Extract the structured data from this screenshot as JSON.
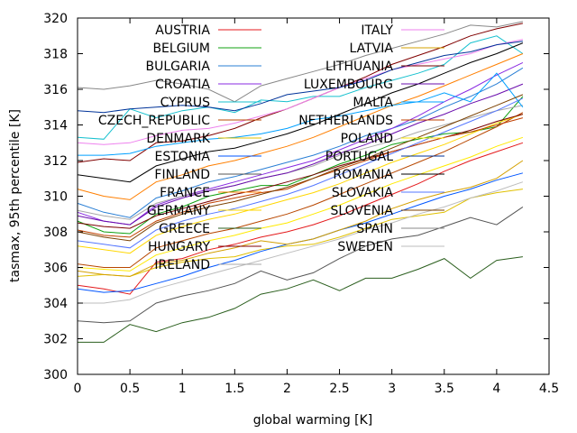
{
  "chart_data": {
    "type": "line",
    "title": "",
    "xlabel": "global warming [K]",
    "ylabel": "tasmax, 95th percentile [K]",
    "xlim": [
      0,
      4.5
    ],
    "ylim": [
      300,
      320
    ],
    "xticks": [
      "0",
      "0.5",
      "1",
      "1.5",
      "2",
      "2.5",
      "3",
      "3.5",
      "4",
      "4.5"
    ],
    "yticks": [
      "300",
      "302",
      "304",
      "306",
      "308",
      "310",
      "312",
      "314",
      "316",
      "318",
      "320"
    ],
    "grid": false,
    "legend": "top-inside, two columns",
    "x": [
      0,
      0.25,
      0.5,
      0.75,
      1,
      1.25,
      1.5,
      1.75,
      2,
      2.25,
      2.5,
      2.75,
      3,
      3.25,
      3.5,
      3.75,
      4,
      4.25
    ],
    "series": [
      {
        "name": "AUSTRIA",
        "color": "#e41a1c",
        "values": [
          305.0,
          304.8,
          304.5,
          306.3,
          306.5,
          307.0,
          307.3,
          307.7,
          308.0,
          308.4,
          308.9,
          309.5,
          310.1,
          310.7,
          311.4,
          312.0,
          312.5,
          313.0
        ]
      },
      {
        "name": "BELGIUM",
        "color": "#11a011",
        "values": [
          308.6,
          308.0,
          307.9,
          309.0,
          309.4,
          310.0,
          310.3,
          310.6,
          310.6,
          311.2,
          311.8,
          312.3,
          312.9,
          313.2,
          313.5,
          313.6,
          313.9,
          315.6
        ]
      },
      {
        "name": "BULGARIA",
        "color": "#2a7fd5",
        "values": [
          309.6,
          309.1,
          308.8,
          309.9,
          310.3,
          310.8,
          311.1,
          311.5,
          311.9,
          312.3,
          312.8,
          313.4,
          313.8,
          314.3,
          315.0,
          315.6,
          316.3,
          317.2
        ]
      },
      {
        "name": "CROATIA",
        "color": "#8a2be2",
        "values": [
          309.1,
          308.6,
          308.4,
          309.5,
          310.0,
          310.4,
          310.8,
          311.2,
          311.6,
          312.0,
          312.6,
          313.2,
          313.8,
          314.5,
          315.3,
          316.0,
          316.8,
          317.5
        ]
      },
      {
        "name": "CYPRUS",
        "color": "#17c1cf",
        "values": [
          313.3,
          313.2,
          314.9,
          314.4,
          314.8,
          315.0,
          314.7,
          315.4,
          315.3,
          315.6,
          315.6,
          316.1,
          316.5,
          316.9,
          317.4,
          318.6,
          319.0,
          318.0
        ]
      },
      {
        "name": "CZECH_REPUBLIC",
        "color": "#b84700",
        "values": [
          306.2,
          306.0,
          306.0,
          307.1,
          307.5,
          307.9,
          308.2,
          308.6,
          309.0,
          309.5,
          310.1,
          310.7,
          311.3,
          311.9,
          312.5,
          313.2,
          313.9,
          314.7
        ]
      },
      {
        "name": "DENMARK",
        "color": "#e0c000",
        "values": [
          305.5,
          305.6,
          305.5,
          306.0,
          306.3,
          306.5,
          306.6,
          307.0,
          307.2,
          307.3,
          307.7,
          308.2,
          308.7,
          308.9,
          309.1,
          309.9,
          310.2,
          310.4
        ]
      },
      {
        "name": "ESTONIA",
        "color": "#0055ff",
        "values": [
          304.8,
          304.6,
          304.7,
          305.1,
          305.5,
          306.0,
          306.4,
          306.9,
          307.3,
          307.6,
          308.1,
          308.5,
          309.0,
          309.5,
          310.0,
          310.4,
          310.9,
          311.3
        ]
      },
      {
        "name": "FINLAND",
        "color": "#555555",
        "values": [
          303.0,
          302.9,
          303.0,
          304.0,
          304.4,
          304.7,
          305.1,
          305.8,
          305.3,
          305.7,
          306.5,
          307.2,
          307.6,
          307.8,
          308.3,
          308.8,
          308.4,
          309.4
        ]
      },
      {
        "name": "FRANCE",
        "color": "#ff7f00",
        "values": [
          310.4,
          310.0,
          309.8,
          310.8,
          311.2,
          311.7,
          312.0,
          312.4,
          312.8,
          313.3,
          313.9,
          314.5,
          315.1,
          315.6,
          316.2,
          316.8,
          317.4,
          318.0
        ]
      },
      {
        "name": "GERMANY",
        "color": "#ffd700",
        "values": [
          307.2,
          307.0,
          306.8,
          307.8,
          308.3,
          308.7,
          309.0,
          309.4,
          309.8,
          310.2,
          310.7,
          311.3,
          311.9,
          312.4,
          312.9,
          313.5,
          314.1,
          314.6
        ]
      },
      {
        "name": "GREECE",
        "color": "#2b5f1e",
        "values": [
          301.8,
          301.8,
          302.8,
          302.4,
          302.9,
          303.2,
          303.7,
          304.5,
          304.8,
          305.3,
          304.7,
          305.4,
          305.4,
          305.9,
          306.5,
          305.4,
          306.4,
          306.6
        ]
      },
      {
        "name": "HUNGARY",
        "color": "#800000",
        "values": [
          311.9,
          312.1,
          312.0,
          313.0,
          313.1,
          313.4,
          313.8,
          314.4,
          314.9,
          315.5,
          316.1,
          316.7,
          317.4,
          317.9,
          318.4,
          319.0,
          319.4,
          319.7
        ]
      },
      {
        "name": "IRELAND",
        "color": "#a8a8a8",
        "values": [
          309.2,
          308.9,
          308.7,
          309.6,
          310.0,
          310.3,
          310.6,
          311.0,
          311.3,
          311.7,
          312.3,
          312.7,
          313.1,
          313.6,
          314.0,
          314.4,
          314.8,
          315.1
        ]
      },
      {
        "name": "ITALY",
        "color": "#ee82ee",
        "values": [
          313.0,
          312.9,
          313.0,
          313.4,
          313.7,
          313.8,
          314.1,
          314.5,
          314.9,
          315.5,
          316.1,
          316.6,
          317.1,
          317.4,
          317.7,
          318.0,
          318.5,
          318.8
        ]
      },
      {
        "name": "LATVIA",
        "color": "#d4a000",
        "values": [
          305.8,
          305.6,
          305.5,
          306.2,
          306.4,
          306.8,
          307.1,
          307.5,
          307.3,
          307.6,
          308.1,
          308.6,
          309.3,
          309.8,
          310.2,
          310.5,
          311.0,
          312.0
        ]
      },
      {
        "name": "LITHUANIA",
        "color": "#7a0000",
        "values": [
          308.5,
          308.3,
          308.2,
          308.9,
          309.3,
          309.7,
          310.1,
          310.4,
          310.8,
          311.2,
          311.7,
          312.1,
          312.5,
          312.9,
          313.3,
          313.7,
          314.2,
          314.6
        ]
      },
      {
        "name": "LUXEMBOURG",
        "color": "#6a0dad",
        "values": [
          308.9,
          308.6,
          308.4,
          309.4,
          309.9,
          310.3,
          310.6,
          311.0,
          311.3,
          311.8,
          312.4,
          312.9,
          313.5,
          314.1,
          314.6,
          315.2,
          315.7,
          316.3
        ]
      },
      {
        "name": "MALTA",
        "color": "#00a0ff",
        "values": [
          312.3,
          312.3,
          312.4,
          312.8,
          313.0,
          313.2,
          313.3,
          313.5,
          313.8,
          314.3,
          314.5,
          314.8,
          315.1,
          315.3,
          315.8,
          315.3,
          316.9,
          315.0
        ]
      },
      {
        "name": "NETHERLANDS",
        "color": "#c04000",
        "values": [
          308.1,
          307.8,
          307.7,
          308.6,
          309.1,
          309.6,
          309.9,
          310.2,
          310.4,
          311.0,
          311.5,
          312.0,
          312.5,
          312.9,
          313.3,
          313.6,
          314.0,
          314.4
        ]
      },
      {
        "name": "POLAND",
        "color": "#ffea00",
        "values": [
          306.0,
          305.9,
          305.8,
          306.7,
          307.1,
          307.5,
          307.8,
          308.2,
          308.5,
          309.0,
          309.5,
          310.1,
          310.7,
          311.2,
          311.7,
          312.2,
          312.8,
          313.3
        ]
      },
      {
        "name": "PORTUGAL",
        "color": "#003399",
        "values": [
          314.8,
          314.7,
          314.9,
          315.0,
          315.1,
          315.0,
          314.8,
          315.2,
          315.7,
          315.9,
          316.1,
          316.5,
          317.1,
          317.5,
          317.9,
          318.1,
          318.5,
          318.7
        ]
      },
      {
        "name": "ROMANIA",
        "color": "#000000",
        "values": [
          311.2,
          311.0,
          310.8,
          311.7,
          312.1,
          312.5,
          312.7,
          313.1,
          313.5,
          314.0,
          314.6,
          315.2,
          315.8,
          316.3,
          316.9,
          317.5,
          318.0,
          318.6
        ]
      },
      {
        "name": "SLOVAKIA",
        "color": "#5577ff",
        "values": [
          307.5,
          307.3,
          307.1,
          308.1,
          308.6,
          309.0,
          309.3,
          309.7,
          310.1,
          310.6,
          311.2,
          311.8,
          312.4,
          313.0,
          313.6,
          314.2,
          314.8,
          315.5
        ]
      },
      {
        "name": "SLOVENIA",
        "color": "#7b4000",
        "values": [
          308.0,
          307.7,
          307.5,
          308.5,
          309.0,
          309.4,
          309.7,
          310.1,
          310.5,
          311.0,
          311.6,
          312.1,
          312.7,
          313.3,
          313.9,
          314.5,
          315.1,
          315.7
        ]
      },
      {
        "name": "SPAIN",
        "color": "#888888",
        "values": [
          316.1,
          316.0,
          316.2,
          316.5,
          316.3,
          316.0,
          315.3,
          316.2,
          316.6,
          317.0,
          317.4,
          317.9,
          318.3,
          318.7,
          319.1,
          319.6,
          319.5,
          319.8
        ]
      },
      {
        "name": "SWEDEN",
        "color": "#bdbdbd",
        "values": [
          304.0,
          304.0,
          304.2,
          304.8,
          305.2,
          305.6,
          306.0,
          306.4,
          306.8,
          307.2,
          307.6,
          308.1,
          308.5,
          309.0,
          309.4,
          309.9,
          310.3,
          310.8
        ]
      }
    ]
  }
}
